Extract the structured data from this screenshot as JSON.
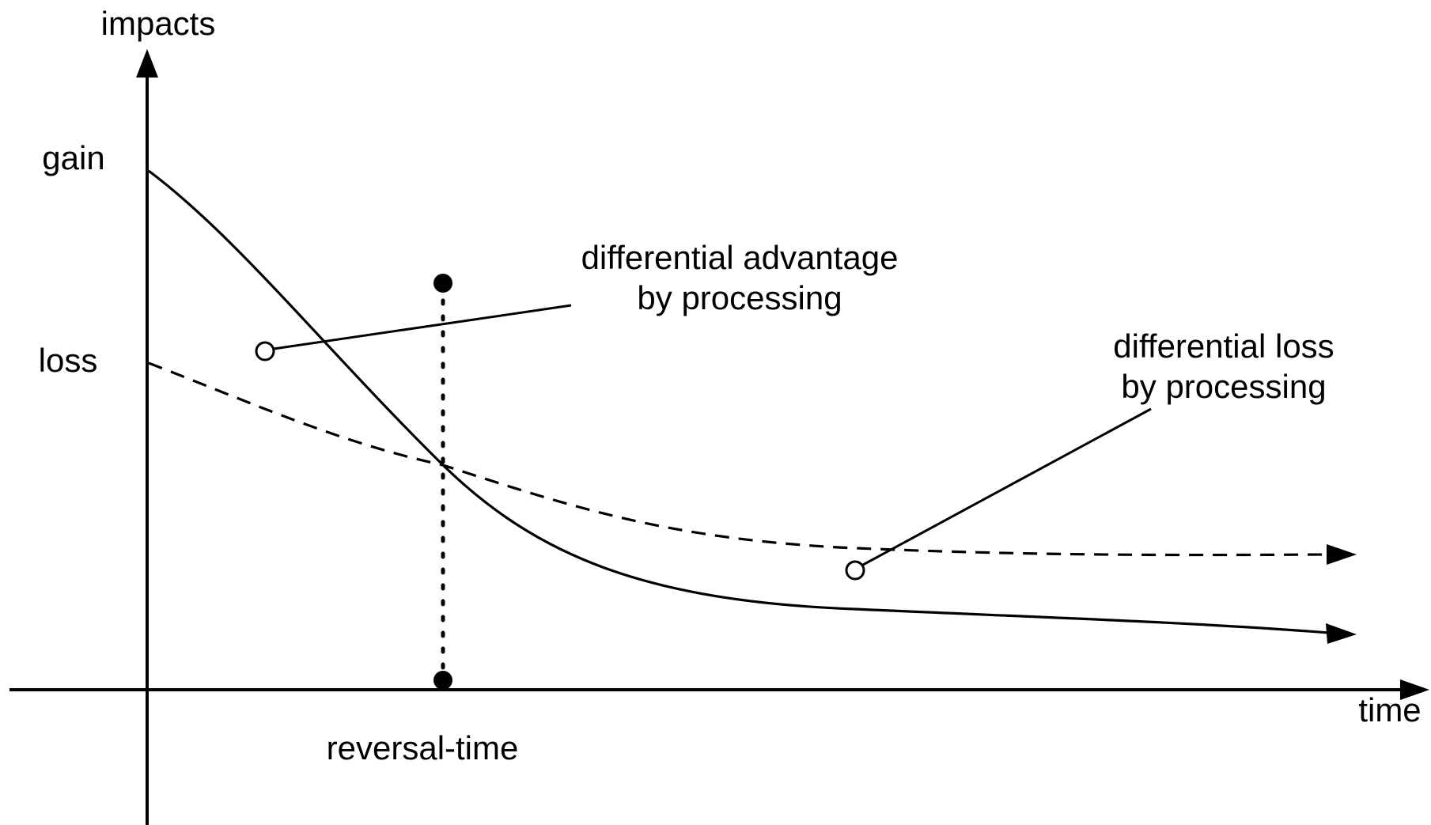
{
  "axes": {
    "y_label": "impacts",
    "x_label": "time"
  },
  "levels": {
    "gain_label": "gain",
    "loss_label": "loss"
  },
  "annotations": {
    "advantage_line1": "differential advantage",
    "advantage_line2": "by processing",
    "loss_line1": "differential loss",
    "loss_line2": "by processing",
    "reversal_label": "reversal-time"
  },
  "colors": {
    "ink": "#000000",
    "background": "#ffffff"
  }
}
